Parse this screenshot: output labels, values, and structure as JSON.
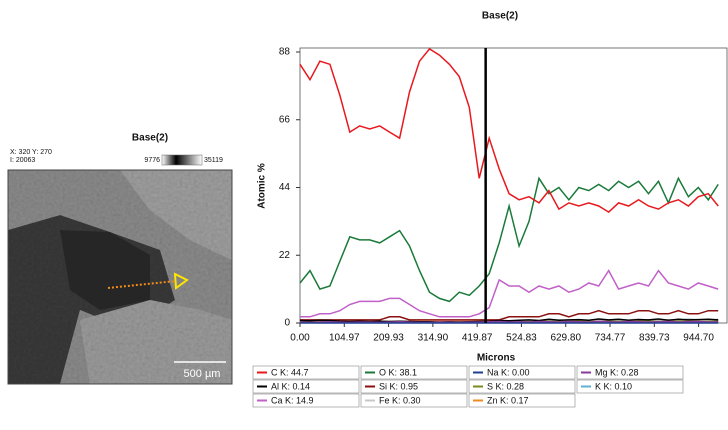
{
  "chart_data": {
    "type": "line",
    "title": "Base(2)",
    "x_label": "Microns",
    "y_label": "Atomic %",
    "x": [
      0,
      23.6,
      47.2,
      70.8,
      94.4,
      118,
      141.6,
      165.2,
      188.8,
      212.4,
      236,
      259.6,
      283.2,
      306.8,
      330.4,
      354,
      377.6,
      401.2,
      424.8,
      448.4,
      472,
      495.6,
      519.2,
      542.8,
      566.4,
      590,
      613.6,
      637.2,
      660.8,
      684.4,
      708,
      731.6,
      755.2,
      778.8,
      802.4,
      826,
      849.6,
      873.2,
      896.8,
      920.4,
      944,
      967.6,
      991.2
    ],
    "xlim": [
      0,
      1012
    ],
    "ylim": [
      0,
      89.3
    ],
    "xticks": [
      {
        "value": 0,
        "label": "0.00"
      },
      104.97,
      209.93,
      {
        "value": 314.9,
        "label": "314.90"
      },
      419.87,
      524.83,
      {
        "value": 629.8,
        "label": "629.80"
      },
      734.77,
      839.73,
      {
        "value": 944.7,
        "label": "944.70"
      }
    ],
    "yticks": [
      0,
      22,
      44,
      66,
      88
    ],
    "cursor": 440,
    "series": [
      {
        "name": "C K: 44.7",
        "color": "#e8191e",
        "values": [
          84,
          79,
          85,
          84,
          74,
          62,
          64,
          63,
          64,
          62,
          60,
          75,
          85,
          89,
          87,
          84,
          80,
          70,
          47,
          60,
          50,
          42,
          40,
          41,
          39,
          43,
          37,
          39,
          38,
          39,
          38,
          36,
          39,
          38,
          40,
          38,
          37,
          39,
          40,
          38,
          41,
          42,
          38
        ]
      },
      {
        "name": "O K: 38.1",
        "color": "#1a7a3a",
        "values": [
          13,
          17,
          11,
          12,
          20,
          28,
          27,
          27,
          26,
          28,
          30,
          25,
          17,
          10,
          8,
          7,
          10,
          9,
          12,
          16,
          26,
          38,
          25,
          33,
          47,
          42,
          44,
          40,
          44,
          43,
          45,
          43,
          46,
          44,
          46,
          42,
          46,
          39,
          47,
          41,
          44,
          40,
          45
        ]
      },
      {
        "name": "Na K: 0.00",
        "color": "#1f3f8f",
        "values": [
          0,
          0,
          0,
          0,
          0,
          0,
          0,
          0,
          0,
          0,
          0,
          0,
          0,
          0,
          0,
          0,
          0,
          0,
          0,
          0,
          0,
          0,
          0,
          0,
          0,
          0,
          0,
          0,
          0,
          0,
          0,
          0,
          0,
          0,
          0,
          0,
          0,
          0,
          0,
          0,
          0,
          0,
          0
        ]
      },
      {
        "name": "Mg K: 0.28",
        "color": "#8a3a9a",
        "values": [
          0.3,
          0.2,
          0.3,
          0.4,
          0.3,
          0.2,
          0.3,
          0.3,
          0.2,
          0.3,
          0.4,
          0.3,
          0.2,
          0.2,
          0.3,
          0.3,
          0.2,
          0.3,
          0.3,
          0.4,
          0.5,
          0.3,
          0.4,
          0.3,
          0.5,
          0.4,
          0.3,
          0.5,
          0.4,
          0.3,
          0.6,
          0.4,
          0.3,
          0.5,
          0.4,
          0.3,
          0.4,
          0.5,
          0.3,
          0.4,
          0.5,
          0.3,
          0.4
        ]
      },
      {
        "name": "Al K: 0.14",
        "color": "#000000",
        "values": [
          0.8,
          0.7,
          0.9,
          0.8,
          0.6,
          0.5,
          0.6,
          0.5,
          0.6,
          0.5,
          0.6,
          0.5,
          0.4,
          0.4,
          0.3,
          0.4,
          0.3,
          0.4,
          0.5,
          0.6,
          0.8,
          0.7,
          0.9,
          1,
          0.8,
          1.2,
          0.9,
          1,
          1.1,
          0.9,
          1.3,
          1,
          1.2,
          0.9,
          1.1,
          1,
          1.3,
          0.9,
          1.2,
          1,
          1.1,
          1.2,
          1
        ]
      },
      {
        "name": "Si K: 0.95",
        "color": "#8b1010",
        "values": [
          1,
          1,
          1,
          1,
          1,
          1,
          1,
          1,
          1,
          2,
          2,
          1,
          1,
          1,
          1,
          1,
          1,
          1,
          1,
          1,
          1,
          2,
          2,
          2,
          2,
          3,
          3,
          2,
          3,
          3,
          4,
          3,
          3,
          3,
          4,
          4,
          3,
          3,
          4,
          3,
          3,
          4,
          4
        ]
      },
      {
        "name": "S K: 0.28",
        "color": "#7a8a20",
        "values": [
          0.3,
          0.3,
          0.2,
          0.3,
          0.3,
          0.3,
          0.2,
          0.3,
          0.3,
          0.3,
          0.2,
          0.3,
          0.3,
          0.3,
          0.2,
          0.3,
          0.3,
          0.3,
          0.3,
          0.4,
          0.5,
          0.4,
          0.5,
          0.4,
          0.5,
          0.6,
          0.4,
          0.5,
          0.6,
          0.5,
          0.4,
          0.6,
          0.5,
          0.4,
          0.5,
          0.6,
          0.5,
          0.4,
          0.6,
          0.5,
          0.4,
          0.5,
          0.6
        ]
      },
      {
        "name": "K K: 0.10",
        "color": "#5fb0d0",
        "values": [
          0.1,
          0.1,
          0.1,
          0.1,
          0.1,
          0.1,
          0.1,
          0.1,
          0.1,
          0.1,
          0.1,
          0.1,
          0.1,
          0.1,
          0.1,
          0.1,
          0.1,
          0.1,
          0.1,
          0.2,
          0.3,
          0.2,
          0.3,
          0.2,
          0.3,
          0.4,
          0.3,
          0.2,
          0.3,
          0.4,
          0.3,
          0.5,
          0.3,
          0.4,
          0.3,
          0.2,
          0.3,
          0.4,
          0.3,
          0.2,
          0.3,
          0.4,
          0.3
        ]
      },
      {
        "name": "Ca K: 14.9",
        "color": "#c060c8",
        "values": [
          2,
          2,
          3,
          3,
          4,
          6,
          7,
          7,
          7,
          8,
          8,
          6,
          4,
          3,
          2,
          2,
          2,
          2,
          3,
          5,
          14,
          12,
          12,
          10,
          12,
          11,
          12,
          10,
          11,
          13,
          12,
          17,
          11,
          12,
          13,
          12,
          17,
          13,
          12,
          11,
          13,
          12,
          11
        ]
      },
      {
        "name": "Fe K: 0.30",
        "color": "#c8c8c8",
        "values": [
          0.3,
          0.3,
          0.3,
          0.3,
          0.3,
          0.3,
          0.3,
          0.3,
          0.3,
          0.3,
          0.3,
          0.3,
          0.3,
          0.3,
          0.3,
          0.3,
          0.3,
          0.3,
          0.3,
          0.5,
          0.8,
          0.6,
          0.7,
          0.9,
          0.6,
          0.8,
          1,
          0.7,
          0.9,
          0.8,
          1.2,
          0.9,
          0.8,
          1,
          1.3,
          0.9,
          0.8,
          1.1,
          0.9,
          1.4,
          1,
          0.9,
          1.2
        ]
      },
      {
        "name": "Zn K: 0.17",
        "color": "#f08a20",
        "values": [
          0.5,
          0.5,
          0.5,
          0.5,
          0.5,
          0.5,
          0.5,
          0.5,
          0.5,
          0.5,
          0.5,
          0.5,
          0.5,
          0.5,
          0.5,
          0.5,
          0.5,
          0.5,
          0.5,
          0.5,
          0.5,
          0.5,
          0.5,
          0.5,
          0.5,
          0.5,
          0.5,
          0.5,
          0.5,
          0.5,
          0.5,
          0.5,
          0.5,
          0.5,
          0.5,
          0.5,
          0.5,
          0.5,
          0.5,
          0.5,
          0.5,
          0.5,
          0.5
        ]
      }
    ]
  },
  "image_panel": {
    "title": "Base(2)",
    "coords": "X: 320 Y: 270",
    "intensity": "I: 20063",
    "scale_min": "9776",
    "scale_max": "35119",
    "scale_bar": "500 µm"
  }
}
